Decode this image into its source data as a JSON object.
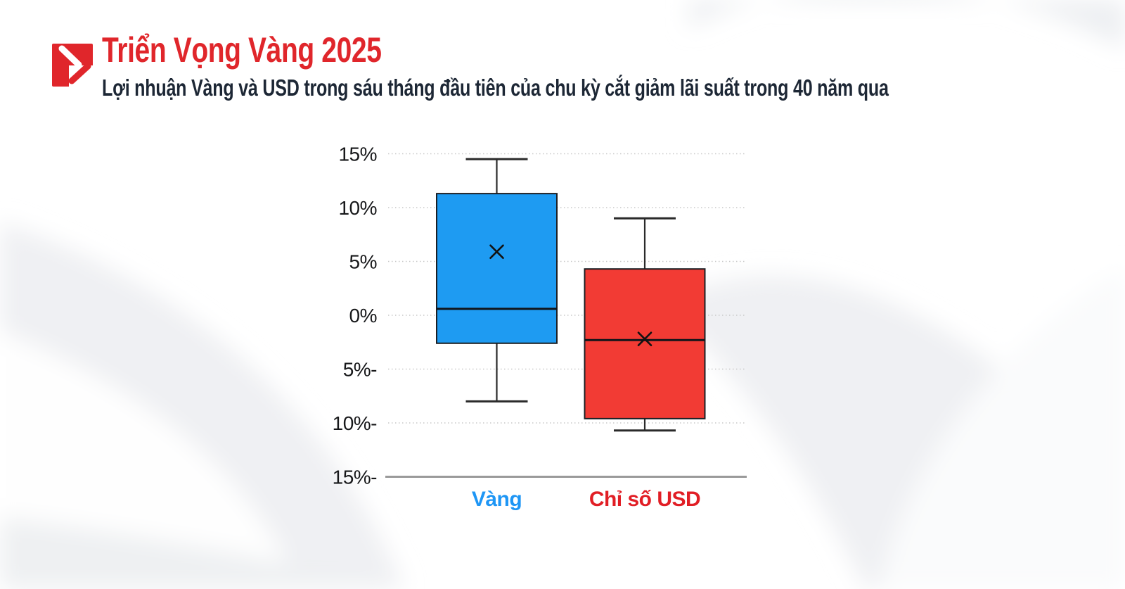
{
  "header": {
    "title": "Triển Vọng Vàng 2025",
    "subtitle": "Lợi nhuận Vàng và USD trong sáu tháng đầu tiên của chu kỳ cắt giảm lãi suất trong 40 năm qua"
  },
  "style": {
    "brand_red": "#E0262B",
    "subtitle_navy": "#1D2735",
    "grid_color": "#C9C9C9",
    "axis_color": "#9A9A9A",
    "tick_text_color": "#17181A",
    "box_outline": "#1B1F24",
    "median_color": "#10141A",
    "mean_marker_color": "#121212",
    "background": "#FFFFFF",
    "swoosh_gray": "#EFF0F3"
  },
  "chart_data": {
    "type": "boxplot",
    "title": "Triển Vọng Vàng 2025",
    "subtitle": "Lợi nhuận Vàng và USD trong sáu tháng đầu tiên của chu kỳ cắt giảm lãi suất trong 40 năm qua",
    "categories": [
      "Vàng",
      "Chỉ số USD"
    ],
    "series": [
      {
        "name": "Vàng",
        "box_color": "#1E9BF2",
        "label_color": "#1E96F5",
        "whisker_high": 14.5,
        "q3": 11.3,
        "mean": 5.9,
        "median": 0.6,
        "q1": -2.6,
        "whisker_low": -8.0
      },
      {
        "name": "Chỉ số USD",
        "box_color": "#F23B34",
        "label_color": "#E11E25",
        "whisker_high": 9.0,
        "q3": 4.3,
        "mean": -2.2,
        "median": -2.3,
        "q1": -9.6,
        "whisker_low": -10.7
      }
    ],
    "y_axis": {
      "tick_labels": [
        "15%",
        "10%",
        "5%",
        "0%",
        "5%-",
        "10%-",
        "15%-"
      ],
      "tick_values": [
        15,
        10,
        5,
        0,
        -5,
        -10,
        -15
      ],
      "range": [
        -15,
        15
      ],
      "unit": "%"
    },
    "mean_marker": "x-cross",
    "grid": "horizontal-dotted",
    "legend": "none"
  }
}
